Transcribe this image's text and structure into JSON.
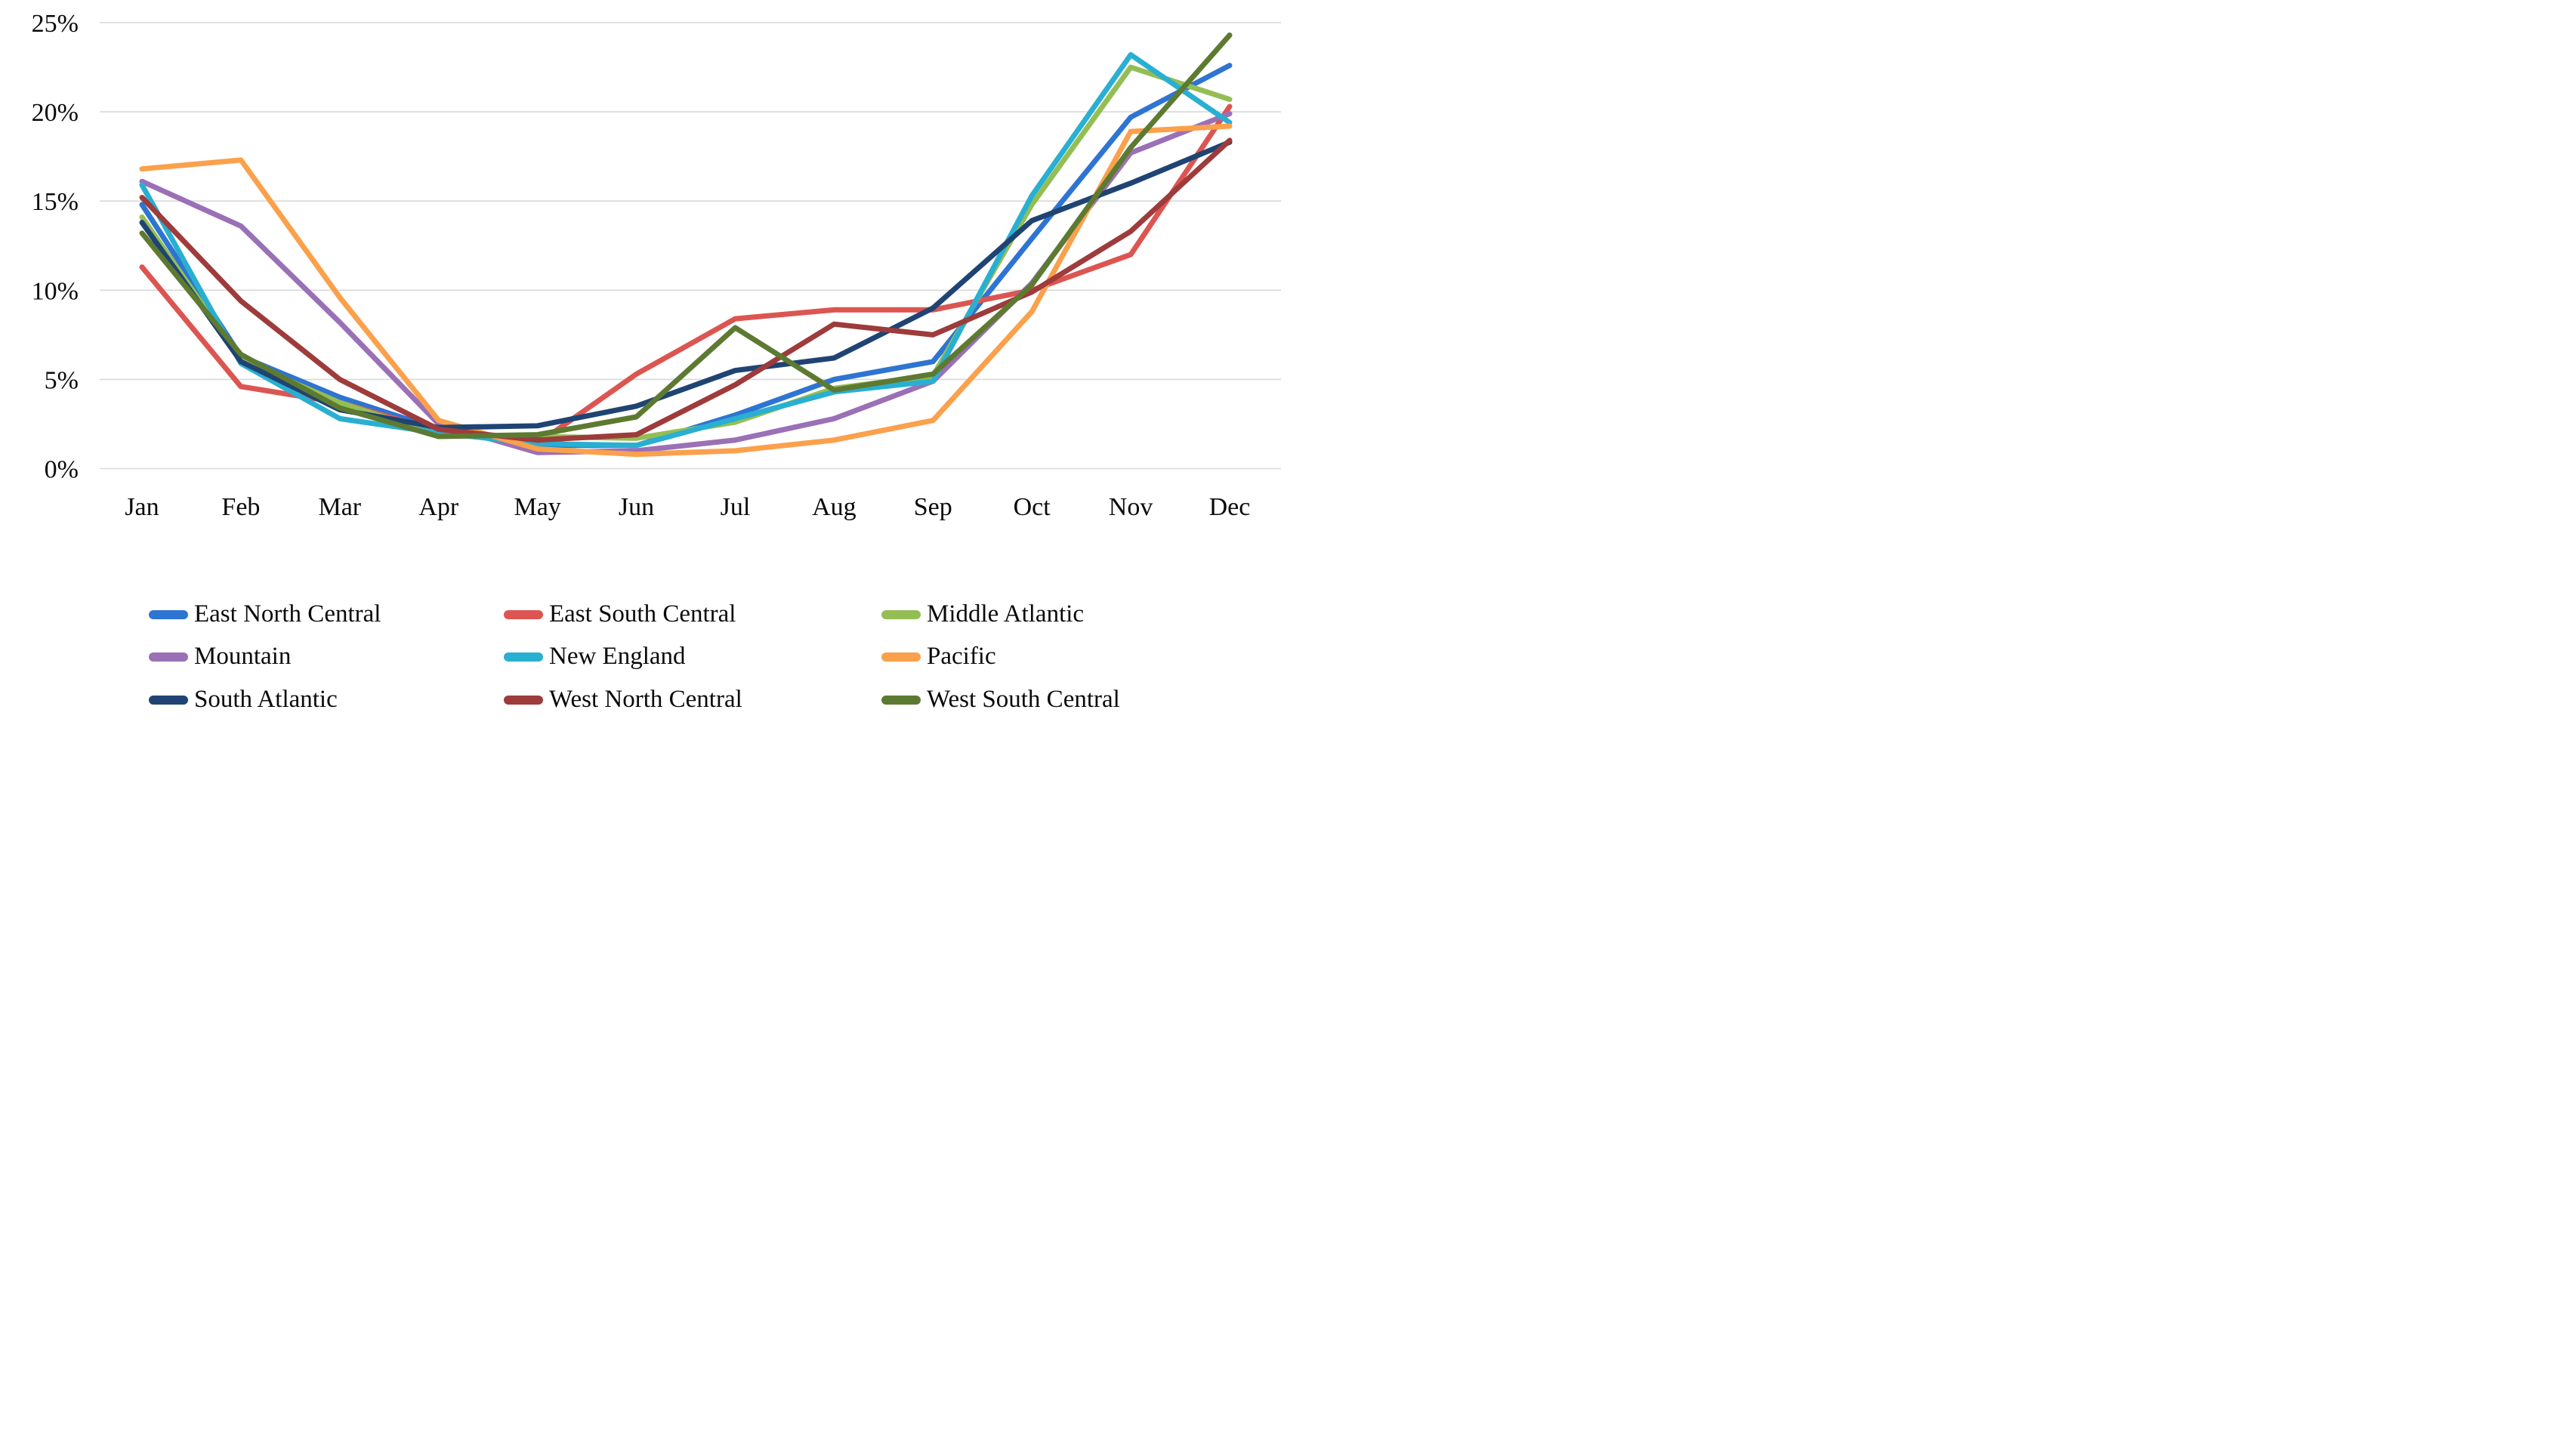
{
  "chart_data": {
    "type": "line",
    "title": "",
    "xlabel": "",
    "ylabel": "",
    "x_categories": [
      "Jan",
      "Feb",
      "Mar",
      "Apr",
      "May",
      "Jun",
      "Jul",
      "Aug",
      "Sep",
      "Oct",
      "Nov",
      "Dec"
    ],
    "y_axis": {
      "min": 0,
      "max": 25,
      "step": 5,
      "unit": "%",
      "tick_labels": [
        "0%",
        "5%",
        "10%",
        "15%",
        "20%",
        "25%"
      ]
    },
    "grid": "horizontal-only",
    "legend_position": "bottom",
    "series": [
      {
        "name": "East North Central",
        "color": "#2E74D2",
        "values": [
          14.8,
          6.3,
          4.0,
          2.2,
          1.3,
          1.3,
          3.0,
          5.0,
          6.0,
          12.9,
          19.7,
          22.6
        ]
      },
      {
        "name": "East South Central",
        "color": "#DC5551",
        "values": [
          11.3,
          4.6,
          3.7,
          2.1,
          1.4,
          5.3,
          8.4,
          8.9,
          8.9,
          10.0,
          12.0,
          20.3
        ]
      },
      {
        "name": "Middle Atlantic",
        "color": "#94BE54",
        "values": [
          14.1,
          6.1,
          3.7,
          1.9,
          1.8,
          1.7,
          2.6,
          4.5,
          5.2,
          14.8,
          22.5,
          20.7
        ]
      },
      {
        "name": "Mountain",
        "color": "#9A70B6",
        "values": [
          16.1,
          13.6,
          8.2,
          2.5,
          0.9,
          1.0,
          1.6,
          2.8,
          4.9,
          10.4,
          17.7,
          19.9
        ]
      },
      {
        "name": "New England",
        "color": "#29AFD2",
        "values": [
          15.9,
          5.9,
          2.8,
          2.0,
          1.4,
          1.3,
          2.8,
          4.3,
          4.9,
          15.3,
          23.2,
          19.4
        ]
      },
      {
        "name": "Pacific",
        "color": "#FBA04B",
        "values": [
          16.8,
          17.3,
          9.6,
          2.7,
          1.1,
          0.8,
          1.0,
          1.6,
          2.7,
          8.8,
          18.9,
          19.2
        ]
      },
      {
        "name": "South Atlantic",
        "color": "#1F4473",
        "values": [
          13.8,
          6.0,
          3.3,
          2.3,
          2.4,
          3.5,
          5.5,
          6.2,
          9.0,
          13.9,
          16.0,
          18.3
        ]
      },
      {
        "name": "West North Central",
        "color": "#9E3B3B",
        "values": [
          15.2,
          9.4,
          5.0,
          2.2,
          1.6,
          1.9,
          4.7,
          8.1,
          7.5,
          9.9,
          13.3,
          18.4
        ]
      },
      {
        "name": "West South Central",
        "color": "#5D7A31",
        "values": [
          13.2,
          6.4,
          3.4,
          1.8,
          1.9,
          2.9,
          7.9,
          4.4,
          5.3,
          10.3,
          18.0,
          24.3
        ]
      }
    ]
  },
  "style_colors": {
    "gridline": "#D9D9D9",
    "text": "#0A0A0A",
    "background": "#FFFFFF"
  },
  "layout_note_visible_elements": {
    "has_title": false,
    "legend_rows": 3,
    "legend_columns": 3
  }
}
